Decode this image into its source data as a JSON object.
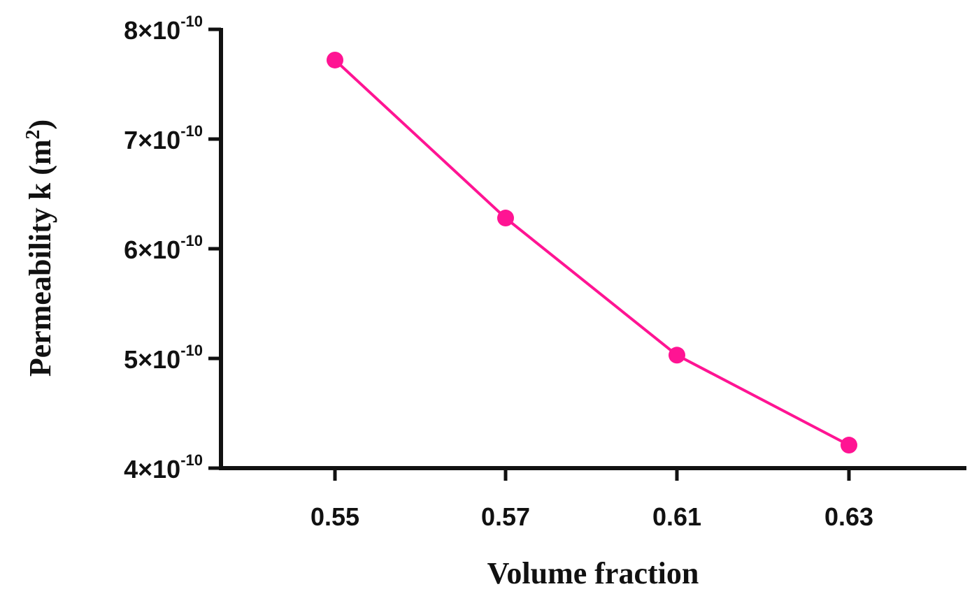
{
  "chart_data": {
    "type": "line",
    "title": "",
    "xlabel": "Volume fraction",
    "ylabel": {
      "main": "Permeability k (m",
      "sup": "2",
      "end": ")"
    },
    "categories": [
      "0.55",
      "0.57",
      "0.61",
      "0.63"
    ],
    "series": [
      {
        "values": [
          7.72e-10,
          6.28e-10,
          5.03e-10,
          4.21e-10
        ],
        "color": "#ff1493"
      }
    ],
    "ylim": [
      4e-10,
      8e-10
    ],
    "yticks": [
      {
        "value": 4e-10,
        "mantissa": "4×10",
        "exp": "-10"
      },
      {
        "value": 5e-10,
        "mantissa": "5×10",
        "exp": "-10"
      },
      {
        "value": 6e-10,
        "mantissa": "6×10",
        "exp": "-10"
      },
      {
        "value": 7e-10,
        "mantissa": "7×10",
        "exp": "-10"
      },
      {
        "value": 8e-10,
        "mantissa": "8×10",
        "exp": "-10"
      }
    ],
    "grid": false,
    "legend": "none"
  }
}
